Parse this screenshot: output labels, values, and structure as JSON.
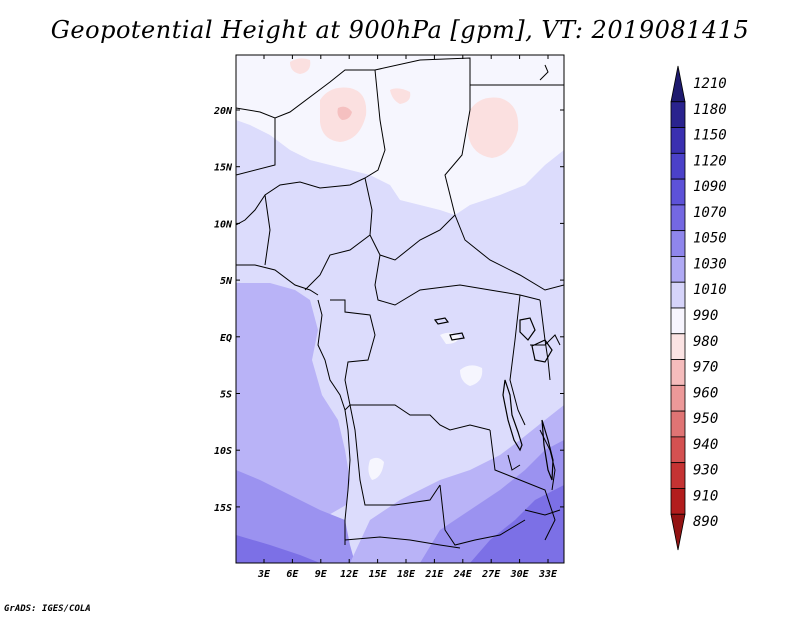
{
  "title": "Geopotential Height at 900hPa [gpm], VT: 2019081415",
  "footer": "GrADS: IGES/COLA",
  "map": {
    "lat_ticks": [
      "20N",
      "15N",
      "10N",
      "5N",
      "EQ",
      "5S",
      "10S",
      "15S"
    ],
    "lon_ticks": [
      "3E",
      "6E",
      "9E",
      "12E",
      "15E",
      "18E",
      "21E",
      "24E",
      "27E",
      "30E",
      "33E"
    ],
    "field_colors": {
      "land_1030": "#dcdcfc",
      "sea_1040": "#b9b3f7",
      "deep_1050": "#9b92f0",
      "deeper_1070": "#7c70e6",
      "high_low": "#fbe0e0",
      "high_low_core": "#f5c0c0"
    }
  },
  "colorbar": {
    "levels": [
      "1210",
      "1180",
      "1150",
      "1120",
      "1090",
      "1070",
      "1050",
      "1030",
      "1010",
      "990",
      "980",
      "970",
      "960",
      "950",
      "940",
      "930",
      "910",
      "890"
    ],
    "colors": [
      "#1e1a6e",
      "#2a238e",
      "#3a30b0",
      "#4b41c9",
      "#5d52d8",
      "#7468e2",
      "#8f86ec",
      "#b0aaf4",
      "#d6d4fa",
      "#f7f5fe",
      "#fbe3e3",
      "#f5bcbc",
      "#ec9999",
      "#e07474",
      "#d45151",
      "#c53333",
      "#b21d1d",
      "#931313"
    ]
  }
}
